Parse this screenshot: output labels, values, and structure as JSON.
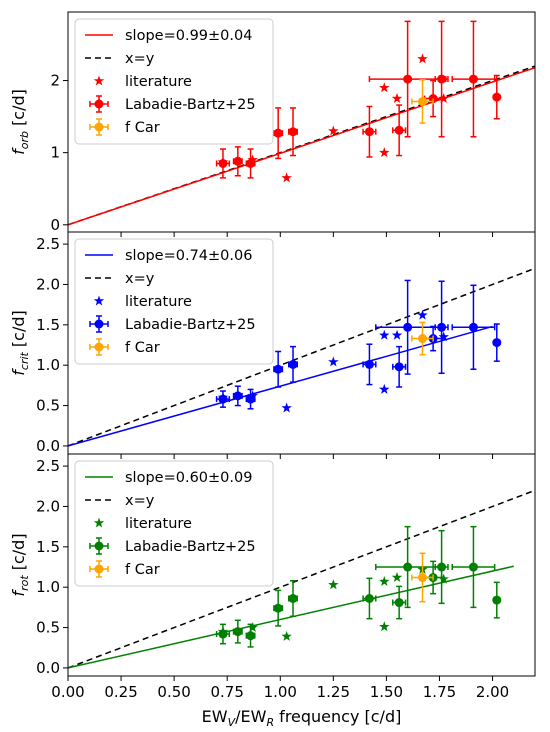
{
  "chart_data": {
    "type": "scatter",
    "xlabel": "EW_V/EW_R frequency [c/d]",
    "xlim": [
      0.0,
      2.2
    ],
    "x_ticks": [
      "0.00",
      "0.25",
      "0.50",
      "0.75",
      "1.00",
      "1.25",
      "1.50",
      "1.75",
      "2.00"
    ],
    "x_tick_values": [
      0.0,
      0.25,
      0.5,
      0.75,
      1.0,
      1.25,
      1.5,
      1.75,
      2.0
    ],
    "shared_x": true,
    "legend_position": "top-left",
    "panels": [
      {
        "ylabel": "f_orb [c/d]",
        "ylim": [
          -0.1,
          2.95
        ],
        "y_ticks": [
          "0",
          "1",
          "2"
        ],
        "y_tick_values": [
          0,
          1,
          2
        ],
        "color": "#ff0000",
        "fit": {
          "label": "slope=0.99±0.04",
          "slope": 0.99,
          "x_range": [
            0.0,
            2.2
          ]
        },
        "identity": {
          "label": "x=y"
        },
        "literature": {
          "label": "literature",
          "points": [
            [
              0.73,
              0.87
            ],
            [
              0.87,
              0.9
            ],
            [
              1.03,
              0.65
            ],
            [
              1.25,
              1.3
            ],
            [
              1.49,
              1.0
            ],
            [
              1.49,
              1.9
            ],
            [
              1.55,
              1.75
            ],
            [
              1.67,
              2.3
            ],
            [
              1.77,
              1.75
            ]
          ]
        },
        "measurements": {
          "label": "Labadie-Bartz+25",
          "points": [
            {
              "x": 0.73,
              "y": 0.85,
              "xerr": 0.03,
              "yerr": 0.2
            },
            {
              "x": 0.8,
              "y": 0.88,
              "xerr": 0.02,
              "yerr": 0.2
            },
            {
              "x": 0.86,
              "y": 0.85,
              "xerr": 0.02,
              "yerr": 0.2
            },
            {
              "x": 0.99,
              "y": 1.27,
              "xerr": 0.02,
              "yerr": 0.35
            },
            {
              "x": 1.06,
              "y": 1.29,
              "xerr": 0.02,
              "yerr": 0.33
            },
            {
              "x": 1.42,
              "y": 1.29,
              "xerr": 0.03,
              "yerr": 0.35
            },
            {
              "x": 1.56,
              "y": 1.31,
              "xerr": 0.03,
              "yerr": 0.35
            },
            {
              "x": 1.6,
              "y": 2.02,
              "xerr": 0.18,
              "yerr": 0.8
            },
            {
              "x": 1.72,
              "y": 1.75,
              "xerr": 0.04,
              "yerr": 0.25
            },
            {
              "x": 1.76,
              "y": 2.02,
              "xerr": 0.03,
              "yerr": 0.8
            },
            {
              "x": 1.91,
              "y": 2.02,
              "xerr": 0.1,
              "yerr": 0.8
            },
            {
              "x": 2.02,
              "y": 1.77,
              "xerr": 0.0,
              "yerr": 0.3
            }
          ]
        },
        "f_car": {
          "label": "f Car",
          "x": 1.67,
          "y": 1.71,
          "xerr": 0.05,
          "yerr": 0.3,
          "color": "#ffa500"
        }
      },
      {
        "ylabel": "f_crit [c/d]",
        "ylim": [
          -0.1,
          2.65
        ],
        "y_ticks": [
          "0.0",
          "0.5",
          "1.0",
          "1.5",
          "2.0",
          "2.5"
        ],
        "y_tick_values": [
          0.0,
          0.5,
          1.0,
          1.5,
          2.0,
          2.5
        ],
        "color": "#0000ff",
        "fit": {
          "label": "slope=0.74±0.06",
          "slope": 0.74,
          "x_range": [
            0.0,
            2.0
          ]
        },
        "identity": {
          "label": "x=y"
        },
        "literature": {
          "label": "literature",
          "points": [
            [
              0.73,
              0.6
            ],
            [
              0.87,
              0.62
            ],
            [
              1.03,
              0.47
            ],
            [
              1.25,
              1.04
            ],
            [
              1.49,
              0.7
            ],
            [
              1.49,
              1.37
            ],
            [
              1.55,
              1.37
            ],
            [
              1.67,
              1.62
            ],
            [
              1.77,
              1.35
            ]
          ]
        },
        "measurements": {
          "label": "Labadie-Bartz+25",
          "points": [
            {
              "x": 0.73,
              "y": 0.58,
              "xerr": 0.03,
              "yerr": 0.1
            },
            {
              "x": 0.8,
              "y": 0.62,
              "xerr": 0.02,
              "yerr": 0.12
            },
            {
              "x": 0.86,
              "y": 0.58,
              "xerr": 0.02,
              "yerr": 0.12
            },
            {
              "x": 0.99,
              "y": 0.95,
              "xerr": 0.02,
              "yerr": 0.22
            },
            {
              "x": 1.06,
              "y": 1.01,
              "xerr": 0.02,
              "yerr": 0.22
            },
            {
              "x": 1.42,
              "y": 1.01,
              "xerr": 0.03,
              "yerr": 0.25
            },
            {
              "x": 1.56,
              "y": 0.98,
              "xerr": 0.03,
              "yerr": 0.25
            },
            {
              "x": 1.6,
              "y": 1.47,
              "xerr": 0.15,
              "yerr": 0.58
            },
            {
              "x": 1.72,
              "y": 1.33,
              "xerr": 0.04,
              "yerr": 0.15
            },
            {
              "x": 1.76,
              "y": 1.47,
              "xerr": 0.03,
              "yerr": 0.57
            },
            {
              "x": 1.91,
              "y": 1.47,
              "xerr": 0.1,
              "yerr": 0.52
            },
            {
              "x": 2.02,
              "y": 1.28,
              "xerr": 0.0,
              "yerr": 0.23
            }
          ]
        },
        "f_car": {
          "label": "f Car",
          "x": 1.67,
          "y": 1.33,
          "xerr": 0.05,
          "yerr": 0.2,
          "color": "#ffa500"
        }
      },
      {
        "ylabel": "f_rot [c/d]",
        "ylim": [
          -0.1,
          2.65
        ],
        "y_ticks": [
          "0.0",
          "0.5",
          "1.0",
          "1.5",
          "2.0",
          "2.5"
        ],
        "y_tick_values": [
          0.0,
          0.5,
          1.0,
          1.5,
          2.0,
          2.5
        ],
        "color": "#008000",
        "fit": {
          "label": "slope=0.60±0.09",
          "slope": 0.6,
          "x_range": [
            0.0,
            2.1
          ]
        },
        "identity": {
          "label": "x=y"
        },
        "literature": {
          "label": "literature",
          "points": [
            [
              0.73,
              0.45
            ],
            [
              0.87,
              0.5
            ],
            [
              1.03,
              0.39
            ],
            [
              1.25,
              1.03
            ],
            [
              1.49,
              0.51
            ],
            [
              1.49,
              1.07
            ],
            [
              1.55,
              1.12
            ],
            [
              1.67,
              1.22
            ],
            [
              1.77,
              1.1
            ]
          ]
        },
        "measurements": {
          "label": "Labadie-Bartz+25",
          "points": [
            {
              "x": 0.73,
              "y": 0.42,
              "xerr": 0.03,
              "yerr": 0.12
            },
            {
              "x": 0.8,
              "y": 0.45,
              "xerr": 0.02,
              "yerr": 0.14
            },
            {
              "x": 0.86,
              "y": 0.4,
              "xerr": 0.02,
              "yerr": 0.14
            },
            {
              "x": 0.99,
              "y": 0.74,
              "xerr": 0.02,
              "yerr": 0.22
            },
            {
              "x": 1.06,
              "y": 0.86,
              "xerr": 0.02,
              "yerr": 0.22
            },
            {
              "x": 1.42,
              "y": 0.86,
              "xerr": 0.03,
              "yerr": 0.25
            },
            {
              "x": 1.56,
              "y": 0.81,
              "xerr": 0.03,
              "yerr": 0.2
            },
            {
              "x": 1.6,
              "y": 1.25,
              "xerr": 0.15,
              "yerr": 0.5
            },
            {
              "x": 1.72,
              "y": 1.12,
              "xerr": 0.04,
              "yerr": 0.2
            },
            {
              "x": 1.76,
              "y": 1.25,
              "xerr": 0.03,
              "yerr": 0.45
            },
            {
              "x": 1.91,
              "y": 1.25,
              "xerr": 0.1,
              "yerr": 0.5
            },
            {
              "x": 2.02,
              "y": 0.84,
              "xerr": 0.0,
              "yerr": 0.22
            }
          ]
        },
        "f_car": {
          "label": "f Car",
          "x": 1.67,
          "y": 1.12,
          "xerr": 0.05,
          "yerr": 0.3,
          "color": "#ffa500"
        }
      }
    ]
  }
}
